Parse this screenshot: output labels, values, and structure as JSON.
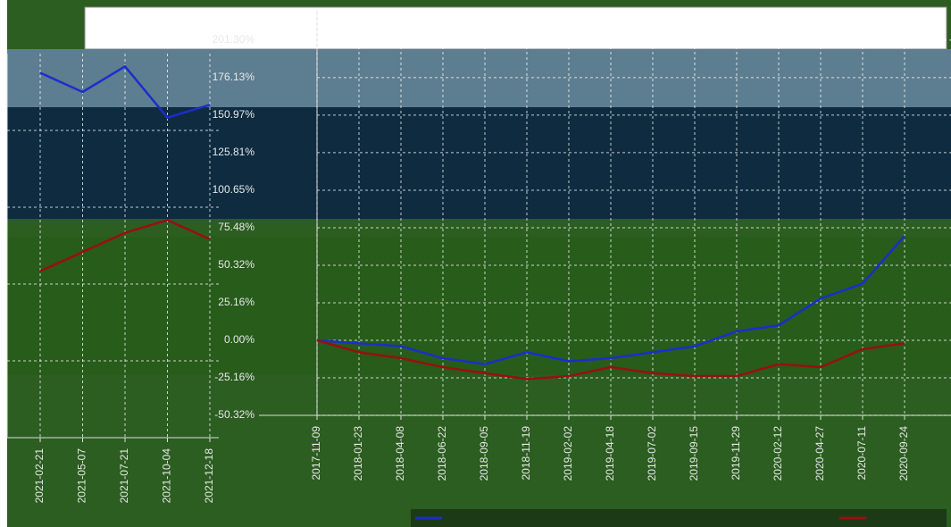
{
  "chart_data": [
    {
      "type": "line",
      "x": [
        "2017-11-09",
        "2018-01-23",
        "2018-04-08",
        "2018-06-22",
        "2018-09-05",
        "2018-11-19",
        "2019-02-02",
        "2019-04-18",
        "2019-07-02",
        "2019-09-15",
        "2019-11-29",
        "2020-02-12",
        "2020-04-27",
        "2020-07-11",
        "2020-09-24"
      ],
      "series": [
        {
          "color": "#1a2ecc",
          "values": [
            0,
            -2,
            -4,
            -12,
            -16,
            -8,
            -14,
            -12,
            -8,
            -4,
            6,
            10,
            28,
            38,
            70
          ]
        },
        {
          "color": "#9a0f0f",
          "values": [
            0,
            -8,
            -12,
            -18,
            -22,
            -26,
            -24,
            -18,
            -22,
            -24,
            -24,
            -16,
            -18,
            -6,
            -2
          ]
        }
      ],
      "ylim": [
        -50.32,
        222.2
      ],
      "yticks": [
        {
          "value": -50.32,
          "label": "-50.32%"
        },
        {
          "value": -25.16,
          "label": "-25.16%"
        },
        {
          "value": 0,
          "label": "0.00%"
        },
        {
          "value": 25.16,
          "label": "25.16%"
        },
        {
          "value": 50.32,
          "label": "50.32%"
        },
        {
          "value": 75.48,
          "label": "75.48%"
        },
        {
          "value": 100.65,
          "label": "100.65%"
        },
        {
          "value": 125.81,
          "label": "125.81%"
        },
        {
          "value": 150.97,
          "label": "150.97%"
        },
        {
          "value": 176.13,
          "label": "176.13%"
        },
        {
          "value": 201.3,
          "label": "201.30%"
        }
      ],
      "grid": true
    },
    {
      "type": "line",
      "x": [
        "2021-02-21",
        "2021-05-07",
        "2021-07-21",
        "2021-10-04",
        "2021-12-18"
      ],
      "series": [
        {
          "color": "#1a2ecc",
          "values": [
            185,
            170,
            190,
            150,
            160
          ]
        },
        {
          "color": "#9a0f0f",
          "values": [
            30,
            45,
            60,
            70,
            55
          ]
        }
      ],
      "ylim": [
        -100,
        200
      ],
      "grid": true
    }
  ]
}
